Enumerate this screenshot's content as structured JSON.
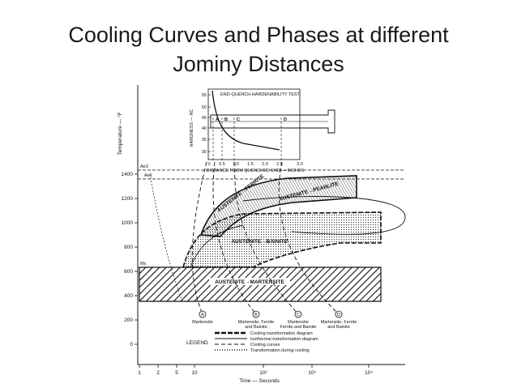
{
  "title": {
    "lines": [
      "Cooling Curves and Phases at different",
      "Jominy Distances"
    ]
  },
  "diagram": {
    "y_axis_label": "Temperature — °F",
    "y_ticks": [
      "0",
      "200",
      "400",
      "600",
      "800",
      "1000",
      "1200",
      "1400"
    ],
    "x_axis_label": "Time — Seconds",
    "x_ticks": [
      "1",
      "2",
      "5",
      "10",
      "10²",
      "10³",
      "10⁴"
    ],
    "lines": {
      "ae3": "Ae3",
      "ae1": "Ae1",
      "ms": "Ms"
    },
    "inset": {
      "title": "END-QUENCH HARDENABILITY TEST",
      "y_label": "HARDNESS — RC",
      "y_ticks": [
        "30",
        "35",
        "40",
        "45",
        "50",
        "55"
      ],
      "x_label": "DISTANCE FROM QUENCHED END — INCHES",
      "x_ticks": [
        "0",
        "0.5",
        "1.0",
        "1.5",
        "2.0",
        "2.5",
        "3.0"
      ],
      "points": [
        "A",
        "B",
        "C",
        "D"
      ]
    },
    "regions": {
      "ferrite": "AUSTENITE→FERRITE",
      "pearlite": "AUSTENITE→PEARLITE",
      "bainite": "AUSTENITE→BAINITE",
      "martensite": "AUSTENITE→MARTENSITE"
    },
    "curves": [
      {
        "marker": "A",
        "lines": [
          "Martensite"
        ]
      },
      {
        "marker": "B",
        "lines": [
          "Martensite, Ferrite",
          "and Bainite"
        ]
      },
      {
        "marker": "C",
        "lines": [
          "Martensite",
          "Ferrite and Bainite"
        ]
      },
      {
        "marker": "D",
        "lines": [
          "Martensite, Ferrite",
          "and Bainite"
        ]
      }
    ],
    "legend": {
      "title": "LEGEND",
      "items": [
        "Cooling transformation diagram",
        "Isothermal transformation diagram",
        "Cooling curves",
        "Transformation during cooling"
      ]
    }
  }
}
